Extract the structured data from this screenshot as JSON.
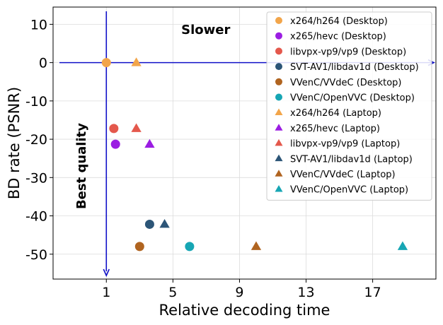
{
  "chart_data": {
    "type": "scatter",
    "xlabel": "Relative decoding time",
    "ylabel": "BD rate (PSNR)",
    "x_ticks": [
      1,
      5,
      9,
      13,
      17
    ],
    "y_ticks": [
      10,
      0,
      -10,
      -20,
      -30,
      -40,
      -50
    ],
    "xlim": [
      -2.2,
      20.8
    ],
    "ylim": [
      -56.5,
      14.5
    ],
    "grid": true,
    "legend_position": "top-right",
    "annotations": [
      {
        "text": "Slower",
        "x": 5.5,
        "y": 7.5
      },
      {
        "text": "Best quality",
        "x": -0.5,
        "y": -27
      }
    ],
    "reference_lines": {
      "x": 1,
      "y": 0,
      "color": "#1010c8"
    },
    "series": [
      {
        "name": "x264/h264 (Desktop)",
        "marker": "circle",
        "color": "#f2a54a",
        "points": [
          {
            "x": 1.0,
            "y": 0.0
          }
        ]
      },
      {
        "name": "x265/hevc (Desktop)",
        "marker": "circle",
        "color": "#9b1de2",
        "points": [
          {
            "x": 1.55,
            "y": -21.3
          }
        ]
      },
      {
        "name": "libvpx-vp9/vp9 (Desktop)",
        "marker": "circle",
        "color": "#e4584c",
        "points": [
          {
            "x": 1.45,
            "y": -17.2
          }
        ]
      },
      {
        "name": "SVT-AV1/libdav1d (Desktop)",
        "marker": "circle",
        "color": "#2c5577",
        "points": [
          {
            "x": 3.6,
            "y": -42.2
          }
        ]
      },
      {
        "name": "VVenC/VVdeC (Desktop)",
        "marker": "circle",
        "color": "#b06420",
        "points": [
          {
            "x": 3.0,
            "y": -48.0
          }
        ]
      },
      {
        "name": "VVenC/OpenVVC (Desktop)",
        "marker": "circle",
        "color": "#17a6b4",
        "points": [
          {
            "x": 6.0,
            "y": -48.0
          }
        ]
      },
      {
        "name": "x264/h264 (Laptop)",
        "marker": "triangle",
        "color": "#f2a54a",
        "points": [
          {
            "x": 2.8,
            "y": 0.0
          }
        ]
      },
      {
        "name": "x265/hevc (Laptop)",
        "marker": "triangle",
        "color": "#9b1de2",
        "points": [
          {
            "x": 3.6,
            "y": -21.3
          }
        ]
      },
      {
        "name": "libvpx-vp9/vp9 (Laptop)",
        "marker": "triangle",
        "color": "#e4584c",
        "points": [
          {
            "x": 2.8,
            "y": -17.2
          }
        ]
      },
      {
        "name": "SVT-AV1/libdav1d (Laptop)",
        "marker": "triangle",
        "color": "#2c5577",
        "points": [
          {
            "x": 4.5,
            "y": -42.2
          }
        ]
      },
      {
        "name": "VVenC/VVdeC (Laptop)",
        "marker": "triangle",
        "color": "#b06420",
        "points": [
          {
            "x": 10.0,
            "y": -48.0
          }
        ]
      },
      {
        "name": "VVenC/OpenVVC (Laptop)",
        "marker": "triangle",
        "color": "#17a6b4",
        "points": [
          {
            "x": 18.8,
            "y": -48.0
          }
        ]
      }
    ]
  }
}
